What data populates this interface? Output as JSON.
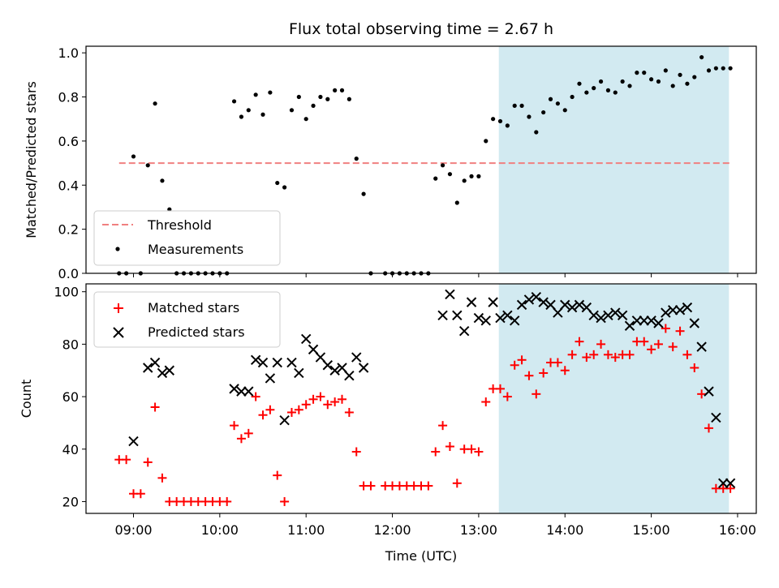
{
  "chart_data": [
    {
      "type": "scatter",
      "title": "Flux total observing time = 2.67 h",
      "ylabel": "Matched/Predicted stars",
      "xlim": [
        "08:27",
        "16:13"
      ],
      "ylim": [
        0,
        1.03
      ],
      "yticks": [
        "0.0",
        "0.2",
        "0.4",
        "0.6",
        "0.8",
        "1.0"
      ],
      "threshold": {
        "name": "Threshold",
        "value": 0.5,
        "x_range": [
          "08:50",
          "15:55"
        ],
        "color": "#f08080"
      },
      "shaded_region": {
        "x_range": [
          "13:14",
          "15:54"
        ],
        "color": "#add8e6"
      },
      "legend": {
        "position": "lower-left",
        "entries": [
          "Threshold",
          "Measurements"
        ]
      },
      "series": [
        {
          "name": "Measurements",
          "color": "#000000",
          "x": [
            "08:50",
            "08:55",
            "09:00",
            "09:05",
            "09:10",
            "09:15",
            "09:20",
            "09:25",
            "09:30",
            "09:35",
            "09:40",
            "09:45",
            "09:50",
            "09:55",
            "10:00",
            "10:05",
            "10:10",
            "10:15",
            "10:20",
            "10:25",
            "10:30",
            "10:35",
            "10:40",
            "10:45",
            "10:50",
            "10:55",
            "11:00",
            "11:05",
            "11:10",
            "11:15",
            "11:20",
            "11:25",
            "11:30",
            "11:35",
            "11:40",
            "11:45",
            "11:55",
            "12:00",
            "12:05",
            "12:10",
            "12:15",
            "12:20",
            "12:25",
            "12:30",
            "12:35",
            "12:40",
            "12:45",
            "12:50",
            "12:55",
            "13:00",
            "13:05",
            "13:10",
            "13:15",
            "13:20",
            "13:25",
            "13:30",
            "13:35",
            "13:40",
            "13:45",
            "13:50",
            "13:55",
            "14:00",
            "14:05",
            "14:10",
            "14:15",
            "14:20",
            "14:25",
            "14:30",
            "14:35",
            "14:40",
            "14:45",
            "14:50",
            "14:55",
            "15:00",
            "15:05",
            "15:10",
            "15:15",
            "15:20",
            "15:25",
            "15:30",
            "15:35",
            "15:40",
            "15:45",
            "15:50",
            "15:55"
          ],
          "y": [
            0,
            0,
            0.53,
            0,
            0.49,
            0.77,
            0.42,
            0.29,
            0,
            0,
            0,
            0,
            0,
            0,
            0,
            0,
            0.78,
            0.71,
            0.74,
            0.81,
            0.72,
            0.82,
            0.41,
            0.39,
            0.74,
            0.8,
            0.7,
            0.76,
            0.8,
            0.79,
            0.83,
            0.83,
            0.79,
            0.52,
            0.36,
            0,
            0,
            0,
            0,
            0,
            0,
            0,
            0,
            0.43,
            0.49,
            0.45,
            0.32,
            0.42,
            0.44,
            0.44,
            0.6,
            0.7,
            0.69,
            0.67,
            0.76,
            0.76,
            0.71,
            0.64,
            0.73,
            0.79,
            0.77,
            0.74,
            0.8,
            0.86,
            0.82,
            0.84,
            0.87,
            0.83,
            0.82,
            0.87,
            0.85,
            0.91,
            0.91,
            0.88,
            0.87,
            0.92,
            0.85,
            0.9,
            0.86,
            0.89,
            0.98,
            0.92,
            0.93,
            0.93,
            0.93
          ]
        }
      ]
    },
    {
      "type": "scatter",
      "xlabel": "Time (UTC)",
      "ylabel": "Count",
      "xlim": [
        "08:27",
        "16:13"
      ],
      "ylim": [
        15.5,
        103
      ],
      "xticks": [
        "09:00",
        "10:00",
        "11:00",
        "12:00",
        "13:00",
        "14:00",
        "15:00",
        "16:00"
      ],
      "yticks": [
        "20",
        "40",
        "60",
        "80",
        "100"
      ],
      "shaded_region": {
        "x_range": [
          "13:14",
          "15:54"
        ],
        "color": "#add8e6"
      },
      "legend": {
        "position": "upper-left",
        "entries": [
          "Matched stars",
          "Predicted stars"
        ]
      },
      "series": [
        {
          "name": "Matched stars",
          "marker": "plus",
          "color": "#ff0000",
          "x": [
            "08:50",
            "08:55",
            "09:00",
            "09:05",
            "09:10",
            "09:15",
            "09:20",
            "09:25",
            "09:30",
            "09:35",
            "09:40",
            "09:45",
            "09:50",
            "09:55",
            "10:00",
            "10:05",
            "10:10",
            "10:15",
            "10:20",
            "10:25",
            "10:30",
            "10:35",
            "10:40",
            "10:45",
            "10:50",
            "10:55",
            "11:00",
            "11:05",
            "11:10",
            "11:15",
            "11:20",
            "11:25",
            "11:30",
            "11:35",
            "11:40",
            "11:45",
            "11:55",
            "12:00",
            "12:05",
            "12:10",
            "12:15",
            "12:20",
            "12:25",
            "12:30",
            "12:35",
            "12:40",
            "12:45",
            "12:50",
            "12:55",
            "13:00",
            "13:05",
            "13:10",
            "13:15",
            "13:20",
            "13:25",
            "13:30",
            "13:35",
            "13:40",
            "13:45",
            "13:50",
            "13:55",
            "14:00",
            "14:05",
            "14:10",
            "14:15",
            "14:20",
            "14:25",
            "14:30",
            "14:35",
            "14:40",
            "14:45",
            "14:50",
            "14:55",
            "15:00",
            "15:05",
            "15:10",
            "15:15",
            "15:20",
            "15:25",
            "15:30",
            "15:35",
            "15:40",
            "15:45",
            "15:50",
            "15:55"
          ],
          "y": [
            36,
            36,
            23,
            23,
            35,
            56,
            29,
            20,
            20,
            20,
            20,
            20,
            20,
            20,
            20,
            20,
            49,
            44,
            46,
            60,
            53,
            55,
            30,
            20,
            54,
            55,
            57,
            59,
            60,
            57,
            58,
            59,
            54,
            39,
            26,
            26,
            26,
            26,
            26,
            26,
            26,
            26,
            26,
            39,
            49,
            41,
            27,
            40,
            40,
            39,
            58,
            63,
            63,
            60,
            72,
            74,
            68,
            61,
            69,
            73,
            73,
            70,
            76,
            81,
            75,
            76,
            80,
            76,
            75,
            76,
            76,
            81,
            81,
            78,
            80,
            86,
            79,
            85,
            76,
            71,
            61,
            48,
            25,
            25,
            25
          ]
        },
        {
          "name": "Predicted stars",
          "marker": "x",
          "color": "#000000",
          "x": [
            "09:00",
            "09:10",
            "09:15",
            "09:20",
            "09:25",
            "10:10",
            "10:15",
            "10:20",
            "10:25",
            "10:30",
            "10:35",
            "10:40",
            "10:45",
            "10:50",
            "10:55",
            "11:00",
            "11:05",
            "11:10",
            "11:15",
            "11:20",
            "11:25",
            "11:30",
            "11:35",
            "11:40",
            "12:35",
            "12:40",
            "12:45",
            "12:50",
            "12:55",
            "13:00",
            "13:05",
            "13:10",
            "13:15",
            "13:20",
            "13:25",
            "13:30",
            "13:35",
            "13:40",
            "13:45",
            "13:50",
            "13:55",
            "14:00",
            "14:05",
            "14:10",
            "14:15",
            "14:20",
            "14:25",
            "14:30",
            "14:35",
            "14:40",
            "14:45",
            "14:50",
            "14:55",
            "15:00",
            "15:05",
            "15:10",
            "15:15",
            "15:20",
            "15:25",
            "15:30",
            "15:35",
            "15:40",
            "15:45",
            "15:50",
            "15:55"
          ],
          "y": [
            43,
            71,
            73,
            69,
            70,
            63,
            62,
            62,
            74,
            73,
            67,
            73,
            51,
            73,
            69,
            82,
            78,
            75,
            72,
            70,
            71,
            68,
            75,
            71,
            91,
            99,
            91,
            85,
            96,
            90,
            89,
            96,
            90,
            91,
            89,
            95,
            97,
            98,
            96,
            95,
            92,
            95,
            94,
            95,
            94,
            91,
            90,
            91,
            92,
            91,
            87,
            89,
            89,
            89,
            88,
            92,
            93,
            93,
            94,
            88,
            79,
            62,
            52,
            27,
            27
          ]
        }
      ]
    }
  ]
}
